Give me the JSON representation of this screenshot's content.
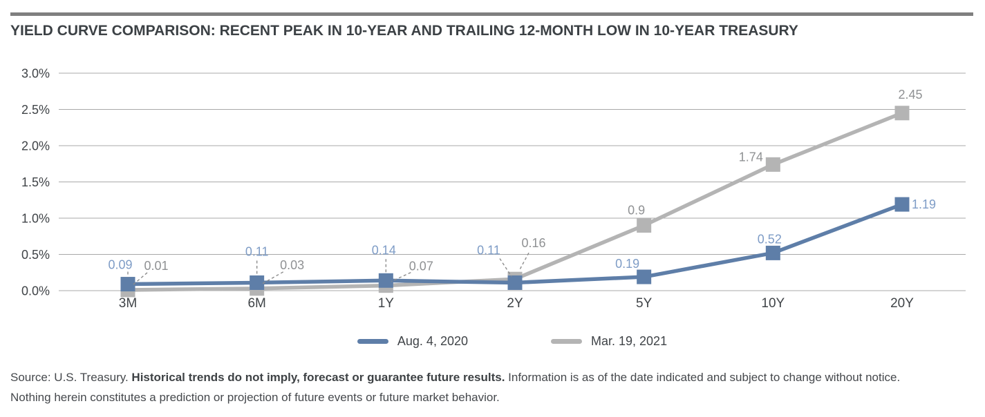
{
  "chart_data": {
    "type": "line",
    "title": "YIELD CURVE COMPARISON: RECENT PEAK IN 10-YEAR AND TRAILING 12-MONTH LOW IN 10-YEAR TREASURY",
    "categories": [
      "3M",
      "6M",
      "1Y",
      "2Y",
      "5Y",
      "10Y",
      "20Y"
    ],
    "xlabel": "",
    "ylabel": "",
    "ylim": [
      0,
      3.0
    ],
    "grid": true,
    "legend_position": "bottom",
    "y_ticks": [
      {
        "label": "3.0%",
        "value": 3.0
      },
      {
        "label": "2.5%",
        "value": 2.5
      },
      {
        "label": "2.0%",
        "value": 2.0
      },
      {
        "label": "1.5%",
        "value": 1.5
      },
      {
        "label": "1.0%",
        "value": 1.0
      },
      {
        "label": "0.5%",
        "value": 0.5
      },
      {
        "label": "0.0%",
        "value": 0.0
      }
    ],
    "series": [
      {
        "name": "Aug. 4, 2020",
        "color": "#5e7ea8",
        "label_color": "#7e9cc6",
        "values": [
          0.09,
          0.11,
          0.14,
          0.11,
          0.19,
          0.52,
          1.19
        ],
        "labels": [
          {
            "dx": -11,
            "dy": -22,
            "leader": [
              0,
              -18,
              0,
              -10
            ]
          },
          {
            "dx": 0,
            "dy": -39,
            "leader": [
              0,
              -32,
              0,
              -11
            ]
          },
          {
            "dx": -3,
            "dy": -38,
            "leader": [
              0,
              -31,
              0,
              -11
            ]
          },
          {
            "dx": -38,
            "dy": -41,
            "leader": [
              -22,
              -35,
              -5,
              -9
            ]
          },
          {
            "dx": -24,
            "dy": -13
          },
          {
            "dx": -5,
            "dy": -14
          },
          {
            "dx": 14,
            "dy": 6,
            "anchor": "start"
          }
        ]
      },
      {
        "name": "Mar. 19, 2021",
        "color": "#b4b4b4",
        "label_color": "#8f9193",
        "values": [
          0.01,
          0.03,
          0.07,
          0.16,
          0.9,
          1.74,
          2.45
        ],
        "labels": [
          {
            "dx": 41,
            "dy": -29,
            "leader": [
              28,
              -25,
              8,
              -8
            ]
          },
          {
            "dx": 51,
            "dy": -28,
            "leader": [
              38,
              -24,
              8,
              -7
            ]
          },
          {
            "dx": 51,
            "dy": -22,
            "leader": [
              36,
              -19,
              8,
              -6
            ]
          },
          {
            "dx": 27,
            "dy": -46,
            "leader": [
              20,
              -38,
              6,
              -12
            ]
          },
          {
            "dx": -11,
            "dy": -16
          },
          {
            "dx": -32,
            "dy": -5
          },
          {
            "dx": 12,
            "dy": -21
          }
        ]
      }
    ],
    "style": {
      "grid_color": "#a8a8a8",
      "axis_text_color": "#3f4347",
      "leader_color": "#8b8b8b",
      "divider_color": "#7f7f7f"
    }
  },
  "footer": {
    "source": "Source: U.S. Treasury. ",
    "bold_disclaimer": "Historical trends do not imply, forecast or guarantee future results.",
    "info": " Information is as of the date indicated and subject to change without notice.",
    "line2": "Nothing herein constitutes a prediction or projection of future events or future market behavior."
  }
}
